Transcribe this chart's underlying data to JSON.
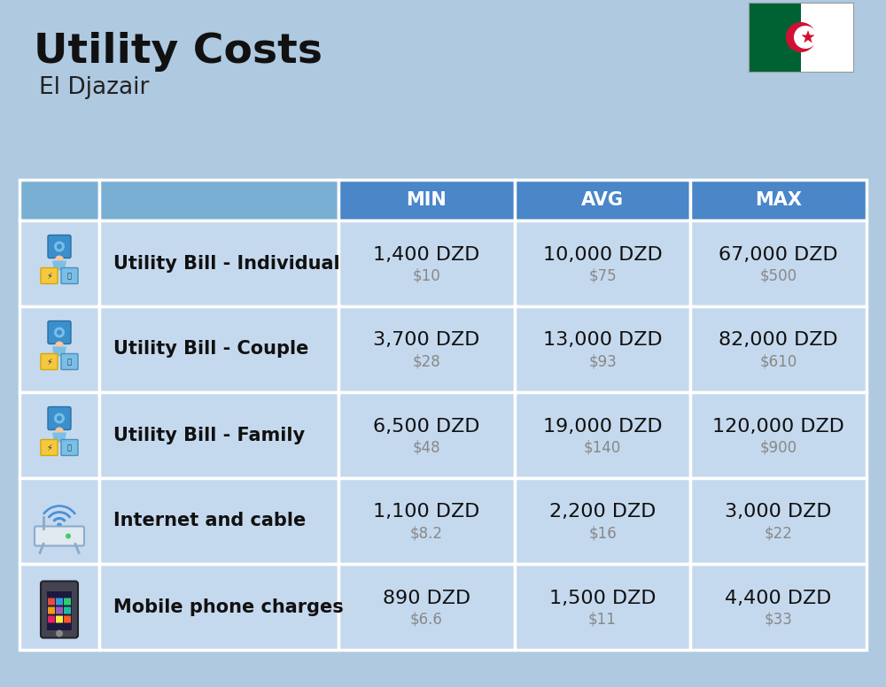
{
  "title": "Utility Costs",
  "subtitle": "El Djazair",
  "background_color": "#aec9e0",
  "header_bg_color": "#4a86c8",
  "header_text_color": "#ffffff",
  "row_bg_color": "#c5d9ee",
  "header_left_bg": "#7aafd4",
  "cell_border_color": "#ffffff",
  "columns": [
    "MIN",
    "AVG",
    "MAX"
  ],
  "rows": [
    {
      "label": "Utility Bill - Individual",
      "min_dzd": "1,400 DZD",
      "min_usd": "$10",
      "avg_dzd": "10,000 DZD",
      "avg_usd": "$75",
      "max_dzd": "67,000 DZD",
      "max_usd": "$500"
    },
    {
      "label": "Utility Bill - Couple",
      "min_dzd": "3,700 DZD",
      "min_usd": "$28",
      "avg_dzd": "13,000 DZD",
      "avg_usd": "$93",
      "max_dzd": "82,000 DZD",
      "max_usd": "$610"
    },
    {
      "label": "Utility Bill - Family",
      "min_dzd": "6,500 DZD",
      "min_usd": "$48",
      "avg_dzd": "19,000 DZD",
      "avg_usd": "$140",
      "max_dzd": "120,000 DZD",
      "max_usd": "$900"
    },
    {
      "label": "Internet and cable",
      "min_dzd": "1,100 DZD",
      "min_usd": "$8.2",
      "avg_dzd": "2,200 DZD",
      "avg_usd": "$16",
      "max_dzd": "3,000 DZD",
      "max_usd": "$22"
    },
    {
      "label": "Mobile phone charges",
      "min_dzd": "890 DZD",
      "min_usd": "$6.6",
      "avg_dzd": "1,500 DZD",
      "avg_usd": "$11",
      "max_dzd": "4,400 DZD",
      "max_usd": "$33"
    }
  ],
  "title_fontsize": 34,
  "subtitle_fontsize": 19,
  "header_fontsize": 15,
  "label_fontsize": 15,
  "value_fontsize": 16,
  "usd_fontsize": 12
}
